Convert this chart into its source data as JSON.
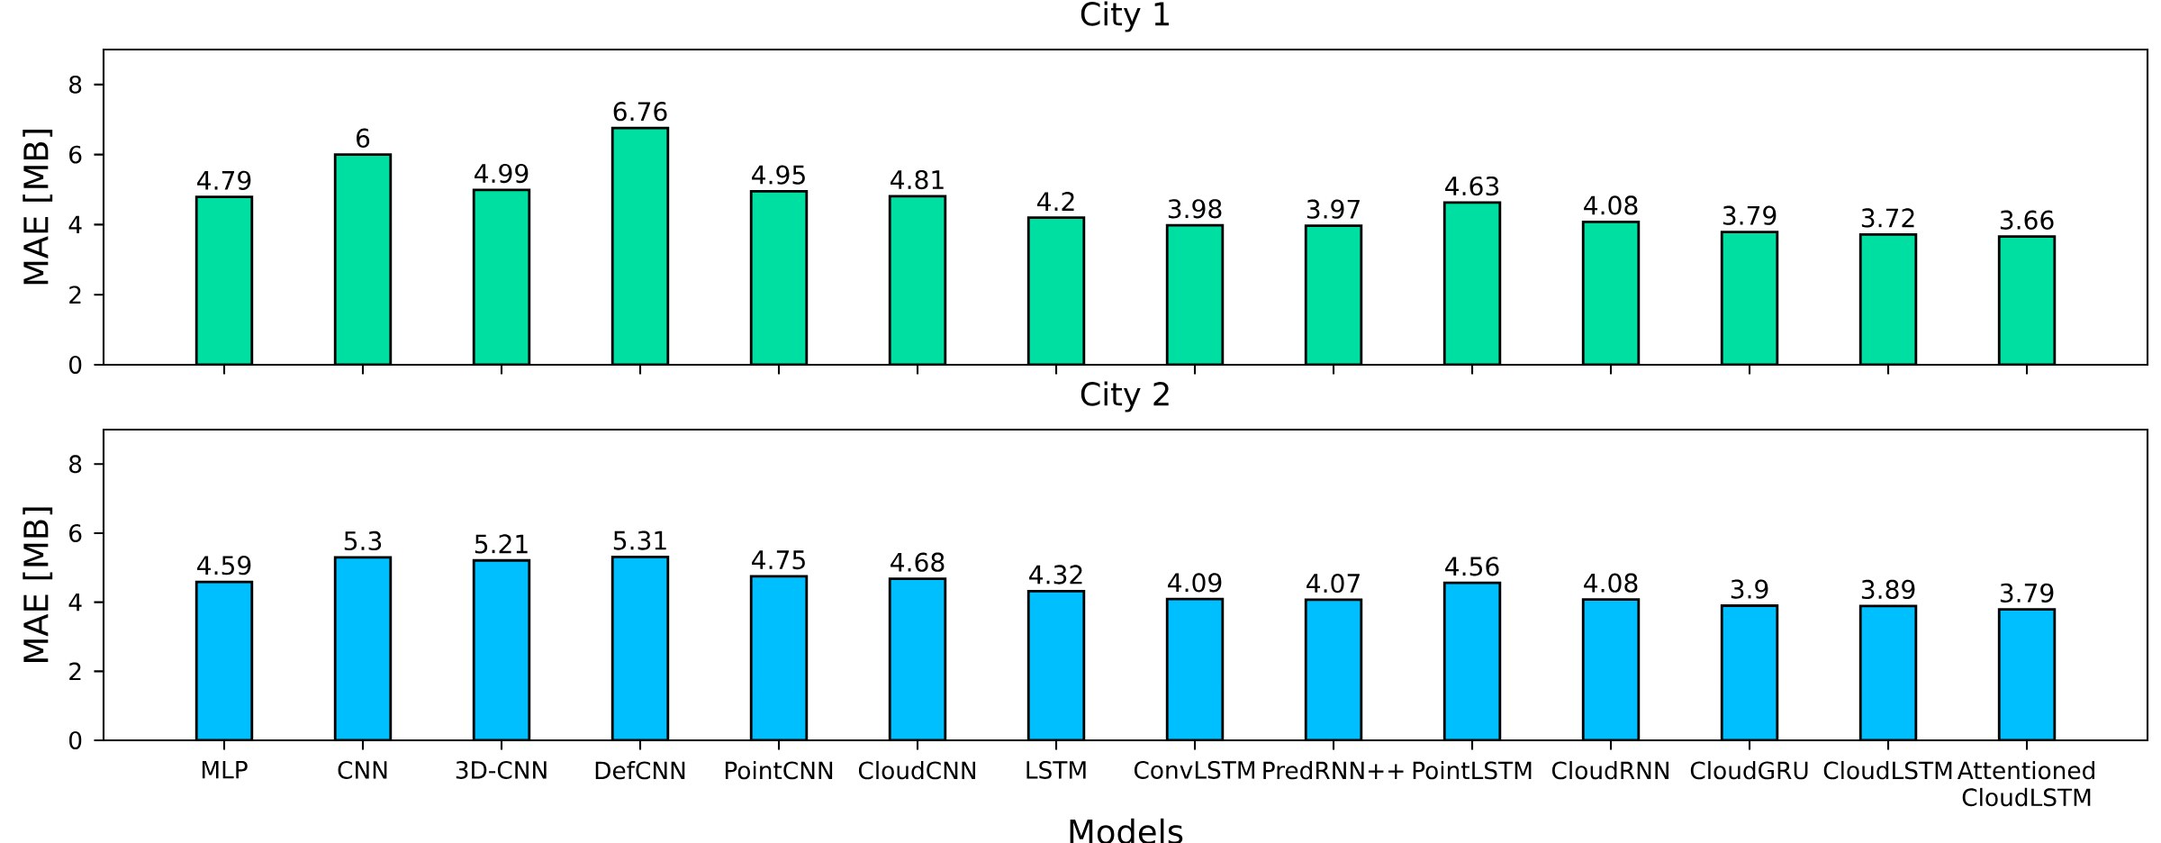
{
  "chart_data": [
    {
      "type": "bar",
      "title": "City 1",
      "ylabel": "MAE [MB]",
      "categories": [
        null,
        null,
        null,
        null,
        null,
        null,
        null,
        null,
        null,
        null,
        null,
        null,
        null,
        null
      ],
      "values": [
        4.79,
        6,
        4.99,
        6.76,
        4.95,
        4.81,
        4.2,
        3.98,
        3.97,
        4.63,
        4.08,
        3.79,
        3.72,
        3.66
      ],
      "color": "#00dfa2",
      "ylim": [
        0,
        9
      ],
      "yticks": [
        0,
        2,
        4,
        6,
        8
      ],
      "data_labels": true,
      "tick_labels": "y"
    },
    {
      "type": "bar",
      "title": "City 2",
      "ylabel": "MAE [MB]",
      "xlabel": "Models",
      "categories": [
        "MLP",
        "CNN",
        "3D-CNN",
        "DefCNN",
        "PointCNN",
        "CloudCNN",
        "LSTM",
        "ConvLSTM",
        "PredRNN++",
        "PointLSTM",
        "CloudRNN",
        "CloudGRU",
        "CloudLSTM",
        "Attentioned CloudLSTM"
      ],
      "values": [
        4.59,
        5.3,
        5.21,
        5.31,
        4.75,
        4.68,
        4.32,
        4.09,
        4.07,
        4.56,
        4.08,
        3.9,
        3.89,
        3.79
      ],
      "color": "#00bfff",
      "ylim": [
        0,
        9
      ],
      "yticks": [
        0,
        2,
        4,
        6,
        8
      ],
      "data_labels": true
    }
  ]
}
